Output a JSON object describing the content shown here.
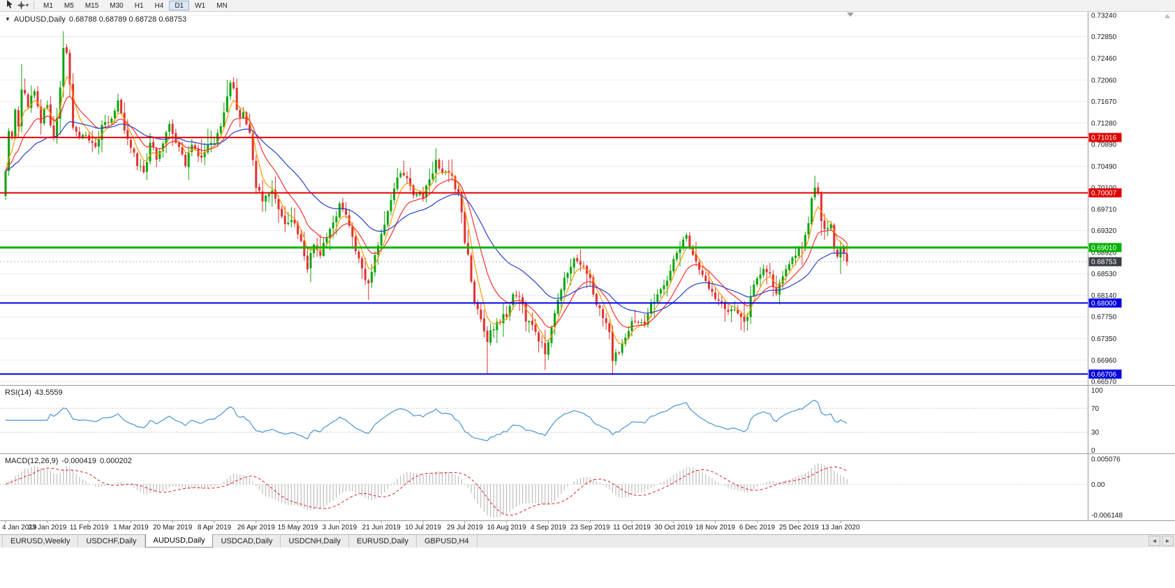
{
  "toolbar": {
    "timeframes": [
      "M1",
      "M5",
      "M15",
      "M30",
      "H1",
      "H4",
      "D1",
      "W1",
      "MN"
    ],
    "active_timeframe": "D1"
  },
  "icons": {
    "chart_context": "▼",
    "draw_caret": "▾",
    "tab_scroll_left": "◄",
    "tab_scroll_right": "►"
  },
  "chart": {
    "symbol_label": "AUDUSD,Daily",
    "ohlc_text": "0.68788 0.68789 0.68728 0.68753"
  },
  "rsi_panel": {
    "label": "RSI(14)",
    "value": "43.5559",
    "axis_ticks": [
      "100",
      "70",
      "30",
      "0"
    ],
    "line_color": "#4a94d4"
  },
  "macd_panel": {
    "label": "MACD(12,26,9)",
    "value_main": "-0.000419",
    "value_signal": "0.000202",
    "axis_ticks": [
      "0.005076",
      "0.00",
      "-0.006148"
    ],
    "histogram_color": "#b0b0b0",
    "signal_color": "#e02020"
  },
  "tabs": {
    "items": [
      {
        "label": "EURUSD,Weekly",
        "active": false
      },
      {
        "label": "USDCHF,Daily",
        "active": false
      },
      {
        "label": "AUDUSD,Daily",
        "active": true
      },
      {
        "label": "USDCAD,Daily",
        "active": false
      },
      {
        "label": "USDCNH,Daily",
        "active": false
      },
      {
        "label": "EURUSD,Daily",
        "active": false
      },
      {
        "label": "GBPUSD,H4",
        "active": false
      }
    ]
  },
  "chart_data": {
    "type": "candlestick",
    "symbol": "AUDUSD",
    "timeframe": "Daily",
    "days": 263,
    "visible_price_range": [
      0.66507,
      0.73304
    ],
    "price_axis_ticks": [
      "0.73240",
      "0.72850",
      "0.72460",
      "0.72060",
      "0.71670",
      "0.71280",
      "0.70890",
      "0.70490",
      "0.70100",
      "0.69710",
      "0.69320",
      "0.68920",
      "0.68530",
      "0.68140",
      "0.67750",
      "0.67350",
      "0.66960",
      "0.66570"
    ],
    "date_axis_ticks": [
      "4 Jan 2019",
      "23 Jan 2019",
      "11 Feb 2019",
      "1 Mar 2019",
      "20 Mar 2019",
      "8 Apr 2019",
      "26 Apr 2019",
      "15 May 2019",
      "3 Jun 2019",
      "21 Jun 2019",
      "10 Jul 2019",
      "29 Jul 2019",
      "16 Aug 2019",
      "4 Sep 2019",
      "23 Sep 2019",
      "11 Oct 2019",
      "30 Oct 2019",
      "18 Nov 2019",
      "6 Dec 2019",
      "25 Dec 2019",
      "13 Jan 2020"
    ],
    "horizontal_levels": [
      {
        "price": 0.71016,
        "label": "0.71016",
        "color": "#e00000",
        "width": 2
      },
      {
        "price": 0.70007,
        "label": "0.70007",
        "color": "#e00000",
        "width": 2
      },
      {
        "price": 0.6901,
        "label": "0.69010",
        "color": "#00b200",
        "width": 3
      },
      {
        "price": 0.68,
        "label": "0.68000",
        "color": "#0000e0",
        "width": 2
      },
      {
        "price": 0.66706,
        "label": "0.66706",
        "color": "#0000e0",
        "width": 2
      }
    ],
    "current_price": {
      "value": 0.68753,
      "label": "0.68753",
      "badge_color": "#3a3f45"
    },
    "candle_colors": {
      "up": "#0ba50b",
      "down": "#e03131"
    },
    "moving_averages": [
      {
        "period": 5,
        "color": "#ff9800"
      },
      {
        "period": 13,
        "color": "#f53131"
      },
      {
        "period": 34,
        "color": "#2742cc"
      }
    ],
    "close_path": [
      [
        0,
        0.704
      ],
      [
        1,
        0.7118
      ],
      [
        2,
        0.71
      ],
      [
        3,
        0.7148
      ],
      [
        4,
        0.7125
      ],
      [
        5,
        0.7195
      ],
      [
        6,
        0.7178
      ],
      [
        7,
        0.7152
      ],
      [
        8,
        0.718
      ],
      [
        9,
        0.7192
      ],
      [
        10,
        0.7162
      ],
      [
        11,
        0.7128
      ],
      [
        12,
        0.7148
      ],
      [
        13,
        0.7155
      ],
      [
        14,
        0.7122
      ],
      [
        15,
        0.7098
      ],
      [
        16,
        0.7135
      ],
      [
        17,
        0.7195
      ],
      [
        18,
        0.7268
      ],
      [
        19,
        0.7252
      ],
      [
        20,
        0.7195
      ],
      [
        21,
        0.712
      ],
      [
        23,
        0.7095
      ],
      [
        25,
        0.7108
      ],
      [
        26,
        0.7092
      ],
      [
        28,
        0.7085
      ],
      [
        30,
        0.712
      ],
      [
        33,
        0.714
      ],
      [
        35,
        0.7165
      ],
      [
        37,
        0.712
      ],
      [
        38,
        0.7098
      ],
      [
        39,
        0.708
      ],
      [
        41,
        0.7055
      ],
      [
        43,
        0.7032
      ],
      [
        45,
        0.709
      ],
      [
        47,
        0.7065
      ],
      [
        49,
        0.7092
      ],
      [
        51,
        0.7122
      ],
      [
        52,
        0.711
      ],
      [
        54,
        0.708
      ],
      [
        56,
        0.7052
      ],
      [
        58,
        0.7088
      ],
      [
        60,
        0.7062
      ],
      [
        62,
        0.7078
      ],
      [
        64,
        0.7088
      ],
      [
        65,
        0.7095
      ],
      [
        67,
        0.7125
      ],
      [
        69,
        0.7178
      ],
      [
        70,
        0.72
      ],
      [
        71,
        0.7185
      ],
      [
        72,
        0.7155
      ],
      [
        73,
        0.7135
      ],
      [
        74,
        0.7148
      ],
      [
        75,
        0.7128
      ],
      [
        76,
        0.7105
      ],
      [
        77,
        0.7062
      ],
      [
        78,
        0.7015
      ],
      [
        80,
        0.6985
      ],
      [
        83,
        0.7005
      ],
      [
        85,
        0.697
      ],
      [
        87,
        0.694
      ],
      [
        89,
        0.695
      ],
      [
        91,
        0.6928
      ],
      [
        93,
        0.689
      ],
      [
        94,
        0.6868
      ],
      [
        96,
        0.6902
      ],
      [
        98,
        0.6888
      ],
      [
        100,
        0.692
      ],
      [
        102,
        0.6948
      ],
      [
        104,
        0.6975
      ],
      [
        106,
        0.696
      ],
      [
        108,
        0.692
      ],
      [
        110,
        0.688
      ],
      [
        112,
        0.6845
      ],
      [
        113,
        0.6838
      ],
      [
        115,
        0.6885
      ],
      [
        117,
        0.6925
      ],
      [
        119,
        0.6968
      ],
      [
        121,
        0.7015
      ],
      [
        123,
        0.7042
      ],
      [
        125,
        0.7028
      ],
      [
        127,
        0.6998
      ],
      [
        129,
        0.7008
      ],
      [
        130,
        0.6995
      ],
      [
        132,
        0.7025
      ],
      [
        134,
        0.7058
      ],
      [
        136,
        0.704
      ],
      [
        138,
        0.7042
      ],
      [
        140,
        0.701
      ],
      [
        141,
        0.6995
      ],
      [
        142,
        0.696
      ],
      [
        143,
        0.6905
      ],
      [
        144,
        0.689
      ],
      [
        145,
        0.6845
      ],
      [
        146,
        0.68
      ],
      [
        148,
        0.677
      ],
      [
        150,
        0.6735
      ],
      [
        152,
        0.6758
      ],
      [
        154,
        0.6768
      ],
      [
        156,
        0.678
      ],
      [
        158,
        0.6815
      ],
      [
        160,
        0.6812
      ],
      [
        162,
        0.677
      ],
      [
        164,
        0.6755
      ],
      [
        166,
        0.6735
      ],
      [
        168,
        0.671
      ],
      [
        170,
        0.676
      ],
      [
        172,
        0.6805
      ],
      [
        174,
        0.6845
      ],
      [
        176,
        0.6872
      ],
      [
        178,
        0.688
      ],
      [
        180,
        0.6862
      ],
      [
        182,
        0.684
      ],
      [
        184,
        0.68
      ],
      [
        186,
        0.677
      ],
      [
        188,
        0.6748
      ],
      [
        189,
        0.6692
      ],
      [
        190,
        0.6705
      ],
      [
        192,
        0.6722
      ],
      [
        194,
        0.6748
      ],
      [
        195,
        0.6768
      ],
      [
        197,
        0.6758
      ],
      [
        199,
        0.6762
      ],
      [
        201,
        0.6795
      ],
      [
        203,
        0.682
      ],
      [
        205,
        0.6838
      ],
      [
        206,
        0.6845
      ],
      [
        208,
        0.688
      ],
      [
        210,
        0.6905
      ],
      [
        212,
        0.6918
      ],
      [
        214,
        0.689
      ],
      [
        216,
        0.6862
      ],
      [
        218,
        0.684
      ],
      [
        221,
        0.6808
      ],
      [
        224,
        0.679
      ],
      [
        227,
        0.6782
      ],
      [
        229,
        0.677
      ],
      [
        231,
        0.6768
      ],
      [
        232,
        0.6818
      ],
      [
        234,
        0.684
      ],
      [
        236,
        0.686
      ],
      [
        238,
        0.6855
      ],
      [
        240,
        0.6812
      ],
      [
        242,
        0.685
      ],
      [
        244,
        0.687
      ],
      [
        246,
        0.6885
      ],
      [
        247,
        0.6895
      ],
      [
        248,
        0.6905
      ],
      [
        249,
        0.693
      ],
      [
        250,
        0.695
      ],
      [
        251,
        0.6985
      ],
      [
        252,
        0.701
      ],
      [
        253,
        0.7
      ],
      [
        254,
        0.695
      ],
      [
        255,
        0.694
      ],
      [
        256,
        0.693
      ],
      [
        257,
        0.6938
      ],
      [
        258,
        0.6905
      ],
      [
        259,
        0.6885
      ],
      [
        260,
        0.69
      ],
      [
        261,
        0.6895
      ],
      [
        262,
        0.68753
      ]
    ],
    "wick_overrides": [
      {
        "day": 0,
        "low": 0.6988
      },
      {
        "day": 5,
        "high": 0.7235
      },
      {
        "day": 18,
        "high": 0.7295
      },
      {
        "day": 70,
        "high": 0.7206
      },
      {
        "day": 94,
        "low": 0.6865
      },
      {
        "day": 134,
        "high": 0.7082
      },
      {
        "day": 150,
        "low": 0.6672
      },
      {
        "day": 168,
        "low": 0.6678
      },
      {
        "day": 189,
        "low": 0.667
      },
      {
        "day": 252,
        "high": 0.7032
      }
    ]
  }
}
